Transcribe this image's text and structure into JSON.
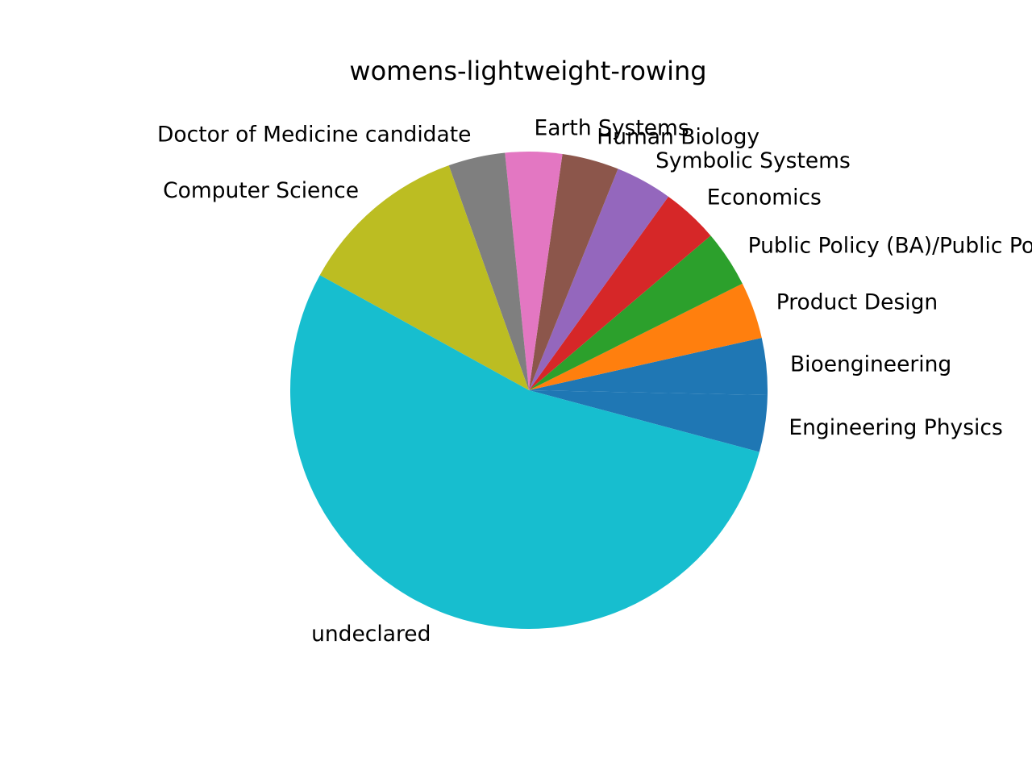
{
  "chart_data": {
    "type": "pie",
    "title": "womens-lightweight-rowing",
    "categories": [
      "Engineering Physics",
      "Bioengineering",
      "Product Design",
      "Public Policy (BA)/Public Policy (MPP)",
      "Economics",
      "Symbolic Systems",
      "Human Biology",
      "Earth Systems",
      "Doctor of Medicine candidate",
      "Computer Science",
      "undeclared"
    ],
    "values": [
      1,
      1,
      1,
      1,
      1,
      1,
      1,
      1,
      1,
      3,
      14
    ],
    "colors": [
      "#1f77b4",
      "#1f77b4",
      "#ff7f0e",
      "#2ca02c",
      "#d62728",
      "#9467bd",
      "#8c564b",
      "#e377c2",
      "#7f7f7f",
      "#bcbd22",
      "#17becf"
    ],
    "start_angle": -15,
    "direction": "counterclockwise",
    "legend": "none"
  }
}
